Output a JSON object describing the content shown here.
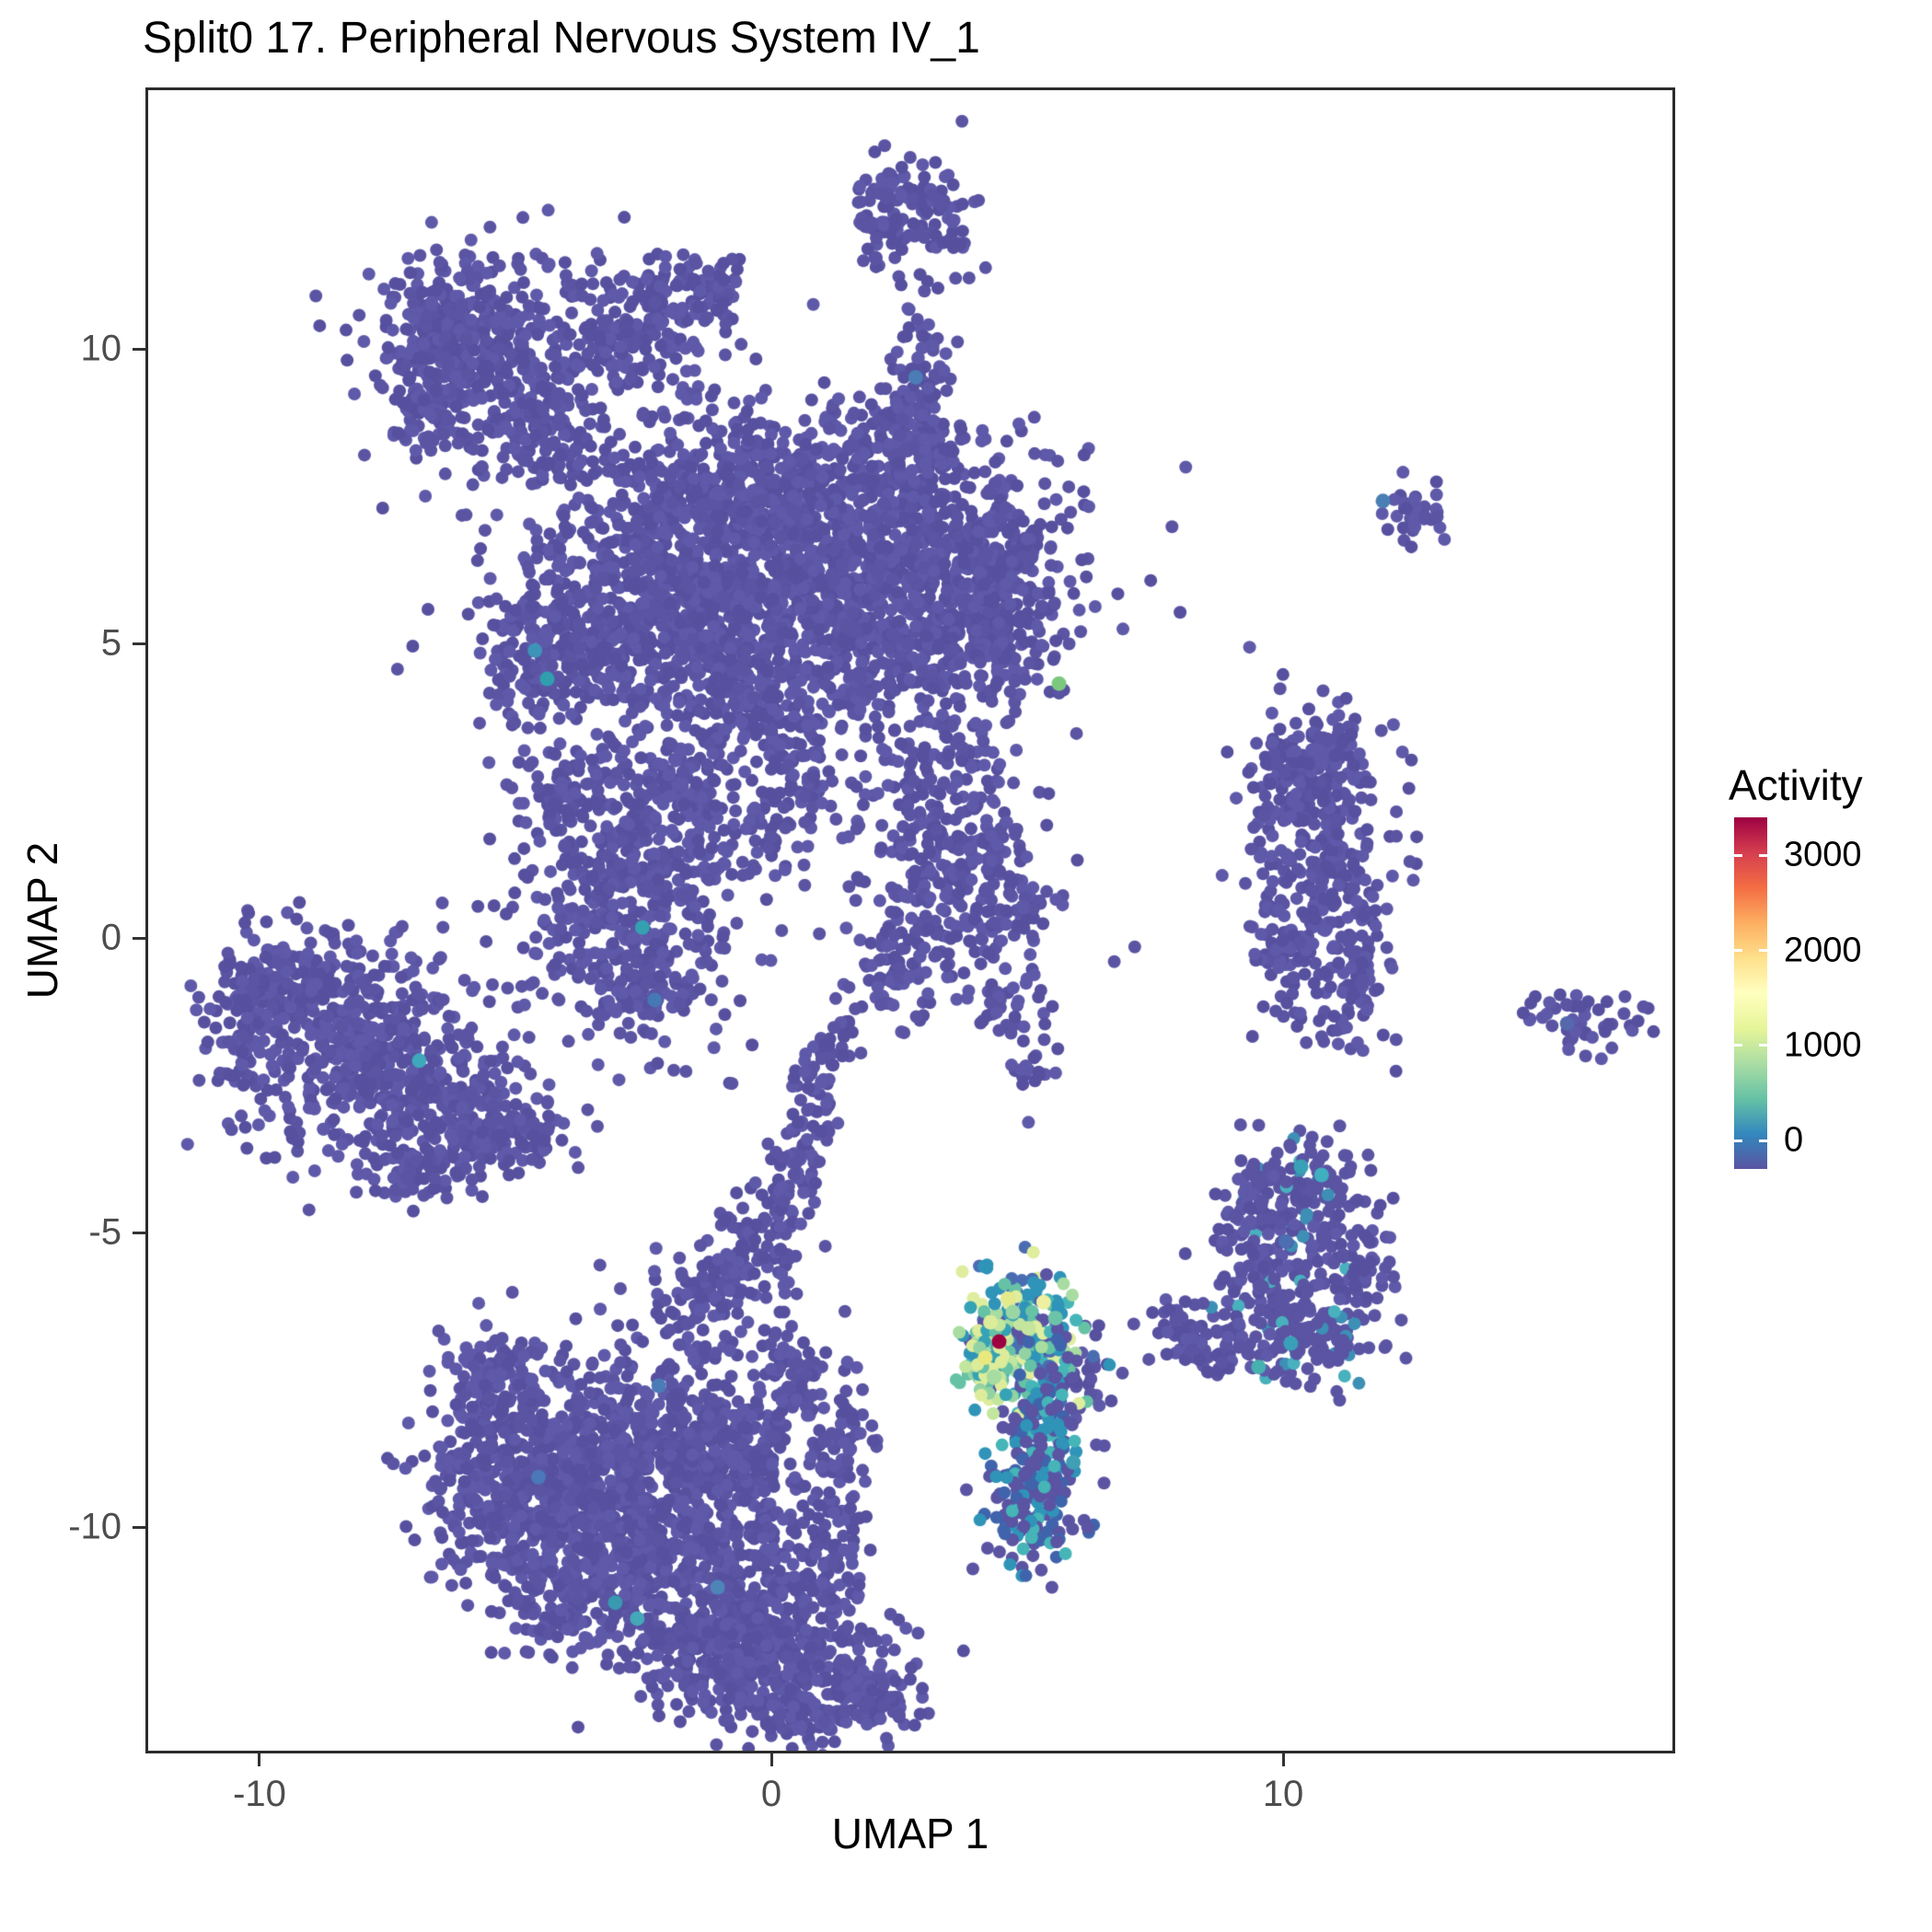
{
  "title": "Split0 17. Peripheral Nervous System IV_1",
  "axes": {
    "x": {
      "label": "UMAP 1",
      "ticks": [
        {
          "value": -10,
          "label": "-10"
        },
        {
          "value": 0,
          "label": "0"
        },
        {
          "value": 10,
          "label": "10"
        }
      ]
    },
    "y": {
      "label": "UMAP 2",
      "ticks": [
        {
          "value": 10,
          "label": "10"
        },
        {
          "value": 5,
          "label": "5"
        },
        {
          "value": 0,
          "label": "0"
        },
        {
          "value": -5,
          "label": "-5"
        },
        {
          "value": -10,
          "label": "-10"
        }
      ]
    }
  },
  "legend": {
    "title": "Activity",
    "range": [
      -300,
      3400
    ],
    "labels": [
      {
        "value": 3000,
        "label": "3000"
      },
      {
        "value": 2000,
        "label": "2000"
      },
      {
        "value": 1000,
        "label": "1000"
      },
      {
        "value": 0,
        "label": "0"
      }
    ],
    "colors": [
      "#5A54A3",
      "#3288BD",
      "#66C2A5",
      "#ABDDA4",
      "#E6F598",
      "#FFFFBF",
      "#FEE08B",
      "#FDAE61",
      "#F46D43",
      "#D53E4F",
      "#9E0142"
    ]
  },
  "chart_data": {
    "type": "scatter",
    "title": "Split0 17. Peripheral Nervous System IV_1",
    "xlabel": "UMAP 1",
    "ylabel": "UMAP 2",
    "xlim": [
      -12.23,
      17.66
    ],
    "ylim": [
      -13.84,
      14.44
    ],
    "point_radius_px": 7,
    "highlight_radius_px": 8,
    "base_colors": [
      "#5A54A3",
      "#56509F",
      "#5F59A9"
    ],
    "palettes": {
      "main": [
        [
          "#4A6DB2",
          2
        ],
        [
          "#2F94B8",
          3
        ],
        [
          "#45B5B8",
          2
        ],
        [
          "#66C2A5",
          2
        ],
        [
          "#A8DCA0",
          1.3
        ],
        [
          "#DFED9E",
          1
        ],
        [
          "#5A54A3",
          1.5
        ]
      ],
      "edge": [
        [
          "#C3E69E",
          2
        ],
        [
          "#DDEC9A",
          2
        ],
        [
          "#93D3A3",
          2
        ],
        [
          "#66C2A5",
          1.5
        ],
        [
          "#35A3B5",
          1
        ]
      ],
      "tail": [
        [
          "#4064AC",
          2
        ],
        [
          "#2F94B8",
          2
        ],
        [
          "#5A54A3",
          3
        ],
        [
          "#45B5B8",
          1
        ]
      ],
      "bottom": [
        [
          "#5A54A3",
          4
        ],
        [
          "#4064AC",
          1.5
        ],
        [
          "#2F94B8",
          1.2
        ],
        [
          "#45B5B8",
          0.8
        ]
      ],
      "arc": [
        [
          "#5A54A3",
          7
        ],
        [
          "#3E8FB5",
          1
        ],
        [
          "#49B0BE",
          0.5
        ]
      ]
    },
    "clusters": [
      {
        "c": [
          -5.3,
          9.7
        ],
        "s": [
          1.05,
          0.95
        ],
        "n": 380
      },
      {
        "c": [
          -6.5,
          10.4
        ],
        "s": [
          0.6,
          0.55
        ],
        "n": 130
      },
      {
        "c": [
          -4.35,
          8.6
        ],
        "s": [
          0.5,
          0.45
        ],
        "n": 90
      },
      {
        "c": [
          -6.9,
          9.0
        ],
        "s": [
          0.4,
          0.4
        ],
        "n": 60
      },
      {
        "c": [
          -2.35,
          10.6
        ],
        "s": [
          0.75,
          0.6
        ],
        "n": 170
      },
      {
        "c": [
          -1.25,
          10.95
        ],
        "s": [
          0.35,
          0.3
        ],
        "n": 40
      },
      {
        "c": [
          -3.3,
          9.9
        ],
        "s": [
          0.3,
          0.25
        ],
        "n": 25
      },
      {
        "c": [
          2.8,
          12.4
        ],
        "s": [
          0.65,
          0.5
        ],
        "n": 110
      },
      {
        "c": [
          2.1,
          11.8
        ],
        "s": [
          0.25,
          0.25
        ],
        "n": 18
      },
      {
        "c": [
          3.55,
          11.85
        ],
        "s": [
          0.2,
          0.2
        ],
        "n": 12
      },
      {
        "c": [
          2.95,
          9.45
        ],
        "s": [
          0.3,
          0.75
        ],
        "n": 70
      },
      {
        "c": [
          2.7,
          8.5
        ],
        "s": [
          0.35,
          0.4
        ],
        "n": 50
      },
      {
        "c": [
          0.3,
          6.5
        ],
        "s": [
          2.3,
          1.15
        ],
        "n": 950
      },
      {
        "c": [
          -1.9,
          5.4
        ],
        "s": [
          1.2,
          0.95
        ],
        "n": 420
      },
      {
        "c": [
          1.6,
          5.1
        ],
        "s": [
          1.5,
          0.85
        ],
        "n": 380
      },
      {
        "c": [
          3.5,
          6.4
        ],
        "s": [
          1.2,
          1.0
        ],
        "n": 320
      },
      {
        "c": [
          -3.6,
          5.2
        ],
        "s": [
          0.95,
          0.85
        ],
        "n": 230
      },
      {
        "c": [
          -1.0,
          7.6
        ],
        "s": [
          1.3,
          0.75
        ],
        "n": 260
      },
      {
        "c": [
          2.0,
          7.9
        ],
        "s": [
          1.0,
          0.6
        ],
        "n": 160
      },
      {
        "c": [
          4.4,
          5.1
        ],
        "s": [
          0.7,
          0.65
        ],
        "n": 130
      },
      {
        "c": [
          4.45,
          6.65
        ],
        "ring": 0.55,
        "rw": 0.13,
        "n": 90
      },
      {
        "c": [
          -4.7,
          4.6
        ],
        "s": [
          0.45,
          0.5
        ],
        "n": 80
      },
      {
        "c": [
          -0.4,
          4.0
        ],
        "s": [
          0.55,
          0.5
        ],
        "n": 90
      },
      {
        "c": [
          0.55,
          2.9
        ],
        "s": [
          0.35,
          0.8
        ],
        "n": 70
      },
      {
        "c": [
          -0.2,
          2.0
        ],
        "s": [
          0.3,
          0.4
        ],
        "n": 35
      },
      {
        "c": [
          3.2,
          2.2
        ],
        "s": [
          0.9,
          0.95
        ],
        "n": 210
      },
      {
        "c": [
          3.7,
          0.4
        ],
        "s": [
          0.8,
          0.85
        ],
        "n": 160
      },
      {
        "c": [
          2.55,
          -0.5
        ],
        "s": [
          0.4,
          0.4
        ],
        "n": 50
      },
      {
        "c": [
          4.95,
          0.65
        ],
        "s": [
          0.4,
          0.5
        ],
        "n": 45
      },
      {
        "c": [
          4.6,
          -1.1
        ],
        "s": [
          0.3,
          0.3
        ],
        "n": 25
      },
      {
        "c": [
          5.05,
          -2.2
        ],
        "s": [
          0.3,
          0.3
        ],
        "n": 20
      },
      {
        "c": [
          -2.8,
          0.9
        ],
        "s": [
          1.1,
          1.3
        ],
        "n": 560
      },
      {
        "c": [
          -1.6,
          2.6
        ],
        "s": [
          0.5,
          0.5
        ],
        "n": 80
      },
      {
        "c": [
          -4.05,
          2.25
        ],
        "s": [
          0.4,
          0.4
        ],
        "n": 50
      },
      {
        "c": [
          -2.3,
          -0.9
        ],
        "s": [
          0.5,
          0.4
        ],
        "n": 60
      },
      {
        "c": [
          -8.0,
          -1.8
        ],
        "s": [
          1.15,
          1.0
        ],
        "n": 470
      },
      {
        "c": [
          -6.3,
          -3.0
        ],
        "s": [
          0.8,
          0.7
        ],
        "n": 210
      },
      {
        "c": [
          -9.6,
          -0.85
        ],
        "s": [
          0.6,
          0.5
        ],
        "n": 110
      },
      {
        "c": [
          -10.4,
          -1.6
        ],
        "s": [
          0.45,
          0.6
        ],
        "n": 80
      },
      {
        "c": [
          -5.0,
          -3.4
        ],
        "s": [
          0.6,
          0.3
        ],
        "n": 80
      },
      {
        "c": [
          -7.2,
          -3.9
        ],
        "s": [
          0.4,
          0.3
        ],
        "n": 40
      },
      {
        "c": [
          10.7,
          1.3
        ],
        "s": [
          0.7,
          1.15
        ],
        "n": 300
      },
      {
        "c": [
          10.25,
          2.85
        ],
        "s": [
          0.5,
          0.4
        ],
        "n": 80
      },
      {
        "c": [
          11.25,
          -0.8
        ],
        "s": [
          0.35,
          0.6
        ],
        "n": 70
      },
      {
        "c": [
          9.95,
          -0.2
        ],
        "s": [
          0.3,
          0.4
        ],
        "n": 40
      },
      {
        "c": [
          11.0,
          3.3
        ],
        "s": [
          0.35,
          0.3
        ],
        "n": 40
      },
      {
        "c": [
          12.6,
          7.3
        ],
        "s": [
          0.3,
          0.28
        ],
        "n": 32
      },
      {
        "c": [
          15.9,
          -1.5
        ],
        "s": [
          0.55,
          0.25
        ],
        "n": 50
      },
      {
        "c": [
          10.35,
          -4.35
        ],
        "s": [
          0.7,
          0.5
        ],
        "n": 130,
        "p": "arc"
      },
      {
        "c": [
          9.6,
          -5.5
        ],
        "s": [
          0.5,
          0.7
        ],
        "n": 100
      },
      {
        "c": [
          10.6,
          -6.6
        ],
        "s": [
          0.85,
          0.5
        ],
        "n": 140,
        "p": "arc"
      },
      {
        "c": [
          11.5,
          -5.4
        ],
        "s": [
          0.35,
          0.55
        ],
        "n": 60
      },
      {
        "c": [
          8.75,
          -6.9
        ],
        "s": [
          0.45,
          0.3
        ],
        "n": 55
      },
      {
        "c": [
          8.0,
          -6.6
        ],
        "s": [
          0.35,
          0.25
        ],
        "n": 30
      },
      {
        "c": [
          9.3,
          -4.7
        ],
        "s": [
          0.5,
          0.5
        ],
        "n": 25
      },
      {
        "c": [
          0.95,
          -2.4
        ],
        "s": [
          0.25,
          0.45
        ],
        "n": 35
      },
      {
        "c": [
          0.6,
          -3.5
        ],
        "s": [
          0.28,
          0.5
        ],
        "n": 45
      },
      {
        "c": [
          0.2,
          -4.5
        ],
        "s": [
          0.3,
          0.5
        ],
        "n": 45
      },
      {
        "c": [
          -0.35,
          -5.3
        ],
        "s": [
          0.4,
          0.45
        ],
        "n": 55
      },
      {
        "c": [
          -1.2,
          -6.2
        ],
        "s": [
          0.55,
          0.5
        ],
        "n": 90
      },
      {
        "c": [
          1.15,
          -1.5
        ],
        "s": [
          0.25,
          0.3
        ],
        "n": 20
      },
      {
        "c": [
          -3.0,
          -8.6
        ],
        "s": [
          1.3,
          0.85
        ],
        "n": 520
      },
      {
        "c": [
          -4.4,
          -9.7
        ],
        "s": [
          0.95,
          0.8
        ],
        "n": 360
      },
      {
        "c": [
          -2.0,
          -10.3
        ],
        "s": [
          0.95,
          0.9
        ],
        "n": 420
      },
      {
        "c": [
          -0.6,
          -9.0
        ],
        "s": [
          0.6,
          0.8
        ],
        "n": 210
      },
      {
        "c": [
          -0.2,
          -11.5
        ],
        "s": [
          0.6,
          0.7
        ],
        "n": 210
      },
      {
        "c": [
          0.65,
          -12.6
        ],
        "s": [
          0.95,
          0.55
        ],
        "n": 320
      },
      {
        "c": [
          -1.5,
          -12.2
        ],
        "s": [
          0.55,
          0.45
        ],
        "n": 130
      },
      {
        "c": [
          -5.35,
          -7.6
        ],
        "s": [
          0.6,
          0.5
        ],
        "n": 120
      },
      {
        "c": [
          -5.9,
          -9.3
        ],
        "s": [
          0.5,
          0.6
        ],
        "n": 100
      },
      {
        "c": [
          -4.0,
          -11.3
        ],
        "s": [
          0.55,
          0.5
        ],
        "n": 110
      },
      {
        "c": [
          1.2,
          -10.4
        ],
        "s": [
          0.35,
          0.65
        ],
        "n": 85
      },
      {
        "c": [
          1.35,
          -8.5
        ],
        "s": [
          0.3,
          0.55
        ],
        "n": 60
      },
      {
        "c": [
          0.35,
          -7.4
        ],
        "s": [
          0.38,
          0.45
        ],
        "n": 65
      },
      {
        "c": [
          1.95,
          -12.9
        ],
        "s": [
          0.45,
          0.3
        ],
        "n": 45
      },
      {
        "c": [
          6.1,
          -7.4
        ],
        "s": [
          0.3,
          0.35
        ],
        "n": 30
      },
      {
        "c": [
          4.95,
          -6.75
        ],
        "s": [
          0.55,
          0.6
        ],
        "n": 230,
        "p": "main"
      },
      {
        "c": [
          4.3,
          -7.15
        ],
        "s": [
          0.28,
          0.55
        ],
        "n": 70,
        "p": "edge"
      },
      {
        "c": [
          5.35,
          -8.2
        ],
        "s": [
          0.3,
          0.55
        ],
        "n": 80,
        "p": "tail"
      },
      {
        "c": [
          5.1,
          -9.6
        ],
        "s": [
          0.5,
          0.65
        ],
        "n": 150,
        "p": "bottom"
      }
    ],
    "singles": [
      [
        2.05,
        11.55
      ],
      [
        3.6,
        11.2
      ],
      [
        -7.95,
        8.2
      ],
      [
        -6.4,
        8.55
      ],
      [
        -0.9,
        9.9
      ],
      [
        -8.9,
        10.9
      ],
      [
        -4.9,
        11.35
      ],
      [
        9.35,
        0.2
      ],
      [
        8.9,
        -5.3
      ],
      [
        7.9,
        -6.5
      ],
      [
        6.35,
        -8.6
      ],
      [
        6.5,
        -9.25
      ],
      [
        1.75,
        -1.95
      ],
      [
        -3.35,
        -5.55
      ],
      [
        -2.95,
        -5.95
      ],
      [
        6.7,
        -0.4
      ],
      [
        7.1,
        -0.15
      ]
    ],
    "highlights": [
      {
        "x": 4.45,
        "y": -6.85,
        "color": "#9E0142",
        "activity": 3200
      },
      {
        "x": 4.62,
        "y": -6.12,
        "color": "#E4E98C",
        "activity": 1300
      },
      {
        "x": 5.32,
        "y": -6.18,
        "color": "#EDF0A0",
        "activity": 1450
      },
      {
        "x": 4.28,
        "y": -6.52,
        "color": "#DDEC9A",
        "activity": 1200
      },
      {
        "x": 5.02,
        "y": -6.62,
        "color": "#C5E59E",
        "activity": 1100
      },
      {
        "x": 4.18,
        "y": -7.12,
        "color": "#E9E87E",
        "activity": 1350
      },
      {
        "x": 4.72,
        "y": -6.35,
        "color": "#9AD5A4",
        "activity": 950
      },
      {
        "x": 5.55,
        "y": -6.45,
        "color": "#6CC3A8",
        "activity": 800
      },
      {
        "x": 4.35,
        "y": -7.45,
        "color": "#A6DBA2",
        "activity": 1000
      },
      {
        "x": -4.62,
        "y": 4.88,
        "color": "#3E93B8",
        "activity": 400
      },
      {
        "x": -4.38,
        "y": 4.4,
        "color": "#2F9FAE",
        "activity": 500
      },
      {
        "x": -2.52,
        "y": 0.18,
        "color": "#35A0B0",
        "activity": 500
      },
      {
        "x": -6.88,
        "y": -2.08,
        "color": "#3FA8BC",
        "activity": 450
      },
      {
        "x": -2.28,
        "y": -1.05,
        "color": "#4579B5",
        "activity": 250
      },
      {
        "x": 5.62,
        "y": 4.32,
        "color": "#7CC87F",
        "activity": 900
      },
      {
        "x": 11.95,
        "y": 7.42,
        "color": "#4A7FB5",
        "activity": 300
      },
      {
        "x": 10.35,
        "y": -3.88,
        "color": "#38A1B5",
        "activity": 480
      },
      {
        "x": 10.75,
        "y": -4.02,
        "color": "#40AFC0",
        "activity": 520
      },
      {
        "x": 10.15,
        "y": -6.88,
        "color": "#3A9FB8",
        "activity": 450
      },
      {
        "x": 9.52,
        "y": -7.28,
        "color": "#47B0B0",
        "activity": 470
      },
      {
        "x": 10.05,
        "y": -5.15,
        "color": "#4B6FB0",
        "activity": 220
      },
      {
        "x": -3.05,
        "y": -11.28,
        "color": "#3899B0",
        "activity": 430
      },
      {
        "x": -2.62,
        "y": -11.55,
        "color": "#44A8B8",
        "activity": 460
      },
      {
        "x": -4.55,
        "y": -9.15,
        "color": "#4A78B8",
        "activity": 260
      },
      {
        "x": -1.05,
        "y": -11.02,
        "color": "#4E84B8",
        "activity": 280
      },
      {
        "x": -2.2,
        "y": -7.6,
        "color": "#4C7CB8",
        "activity": 240
      },
      {
        "x": 15.55,
        "y": -1.45,
        "color": "#5568AC",
        "activity": 150
      },
      {
        "x": 2.82,
        "y": 9.52,
        "color": "#4C7CB5",
        "activity": 230
      },
      {
        "x": 5.9,
        "y": -8.9,
        "color": "#3E9FB5",
        "activity": 420
      }
    ]
  }
}
